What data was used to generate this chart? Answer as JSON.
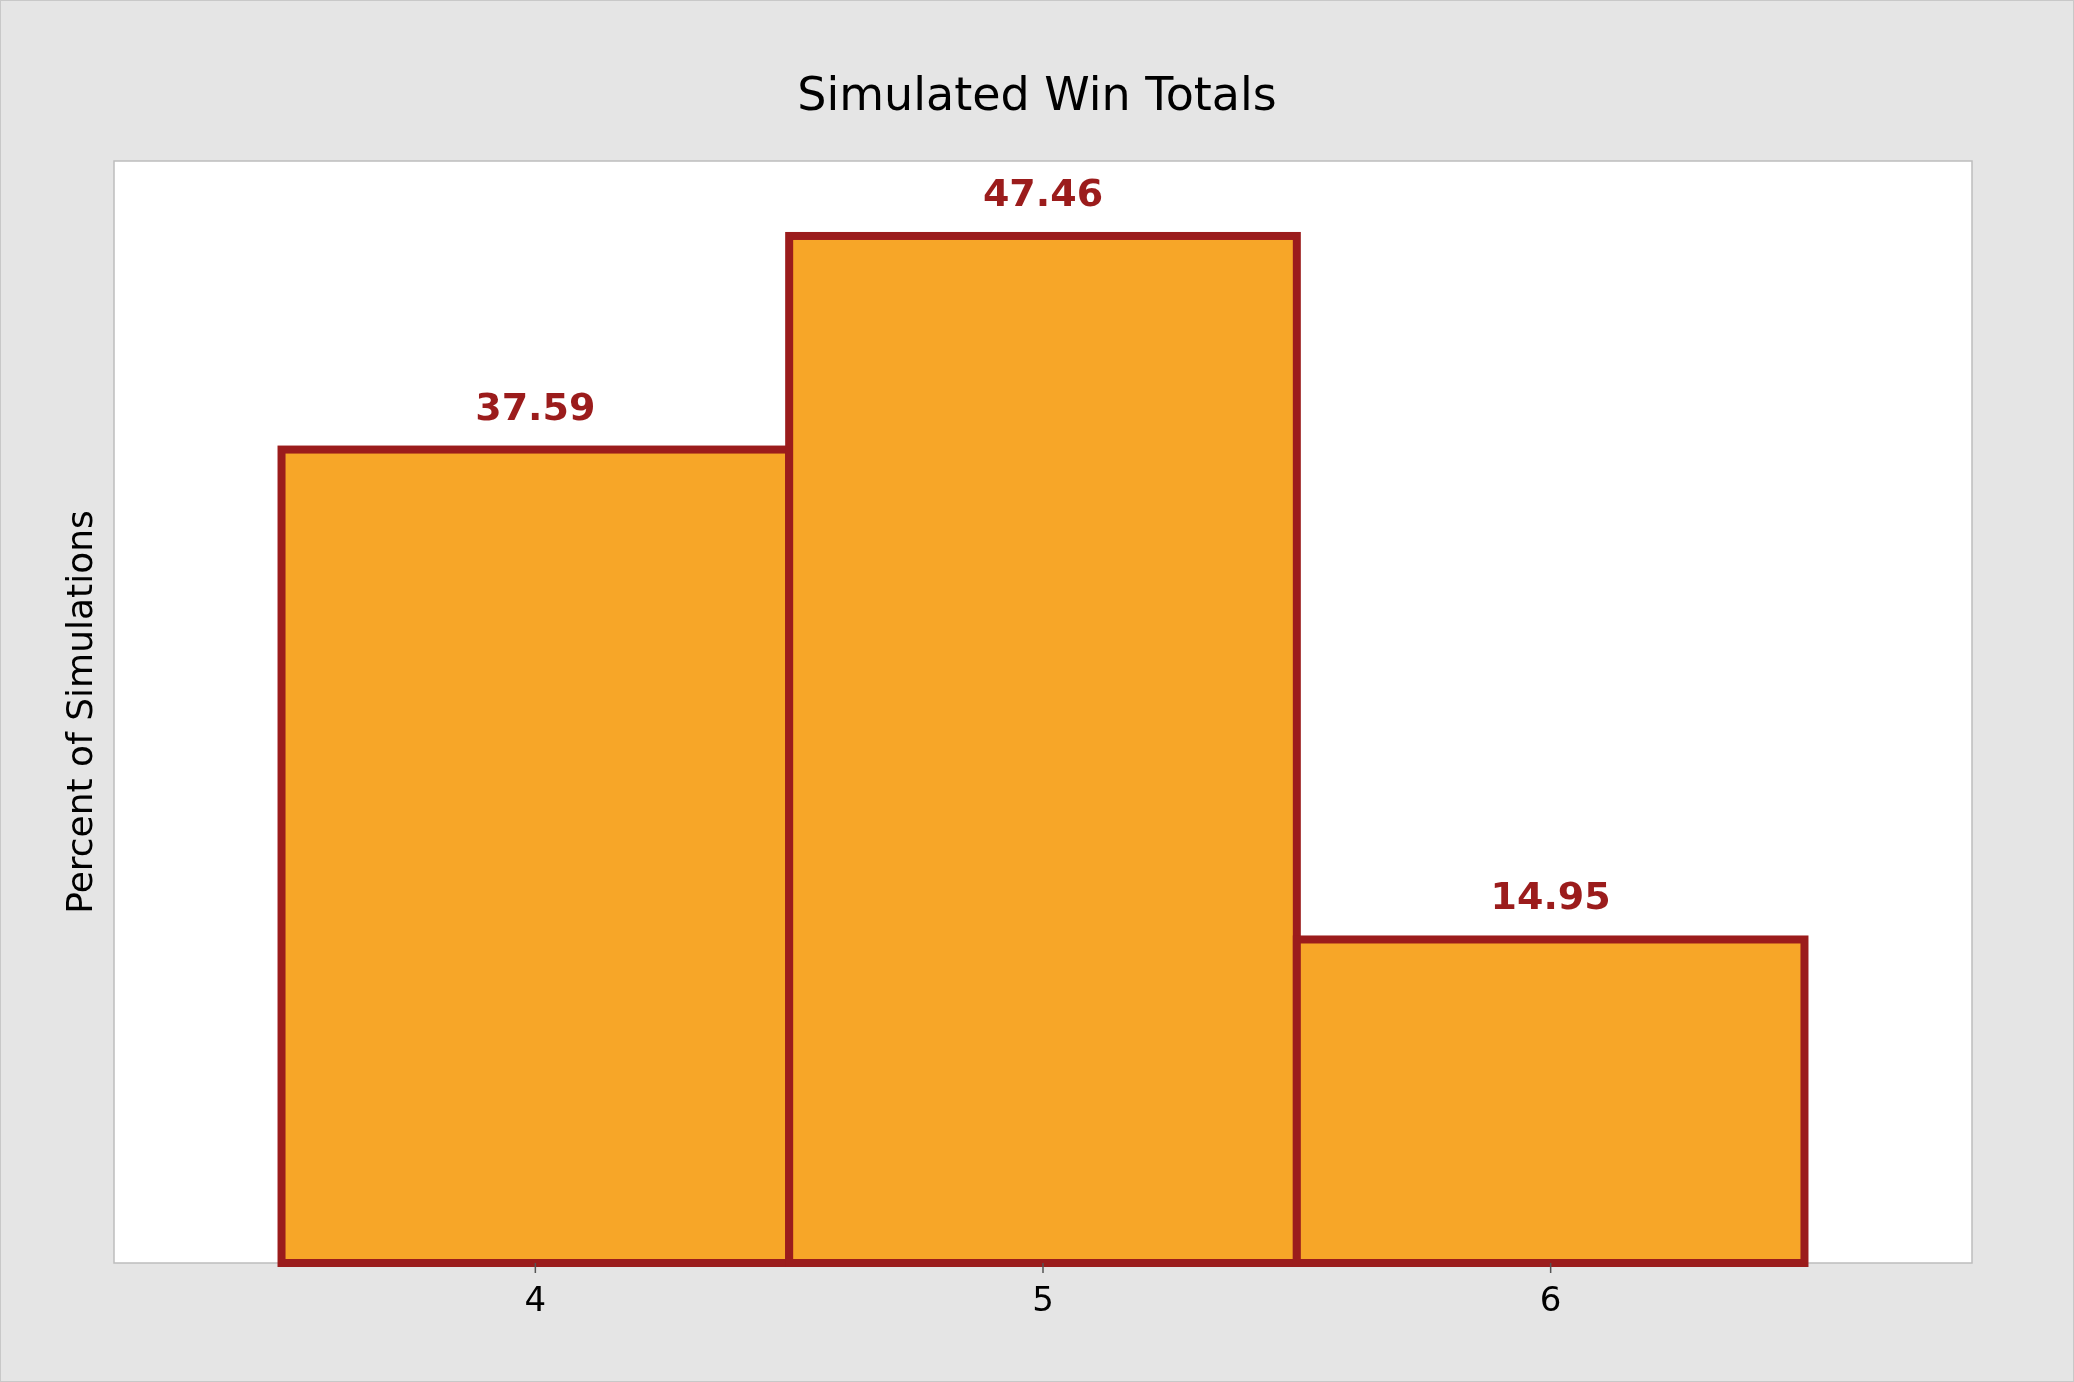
{
  "chart_data": {
    "type": "bar",
    "title": "Simulated Win Totals",
    "ylabel": "Percent of Simulations",
    "categories": [
      "4",
      "5",
      "6"
    ],
    "values": [
      37.59,
      47.46,
      14.95
    ],
    "color": "#f7a628",
    "tick_labels": "x",
    "data_labels": true
  }
}
